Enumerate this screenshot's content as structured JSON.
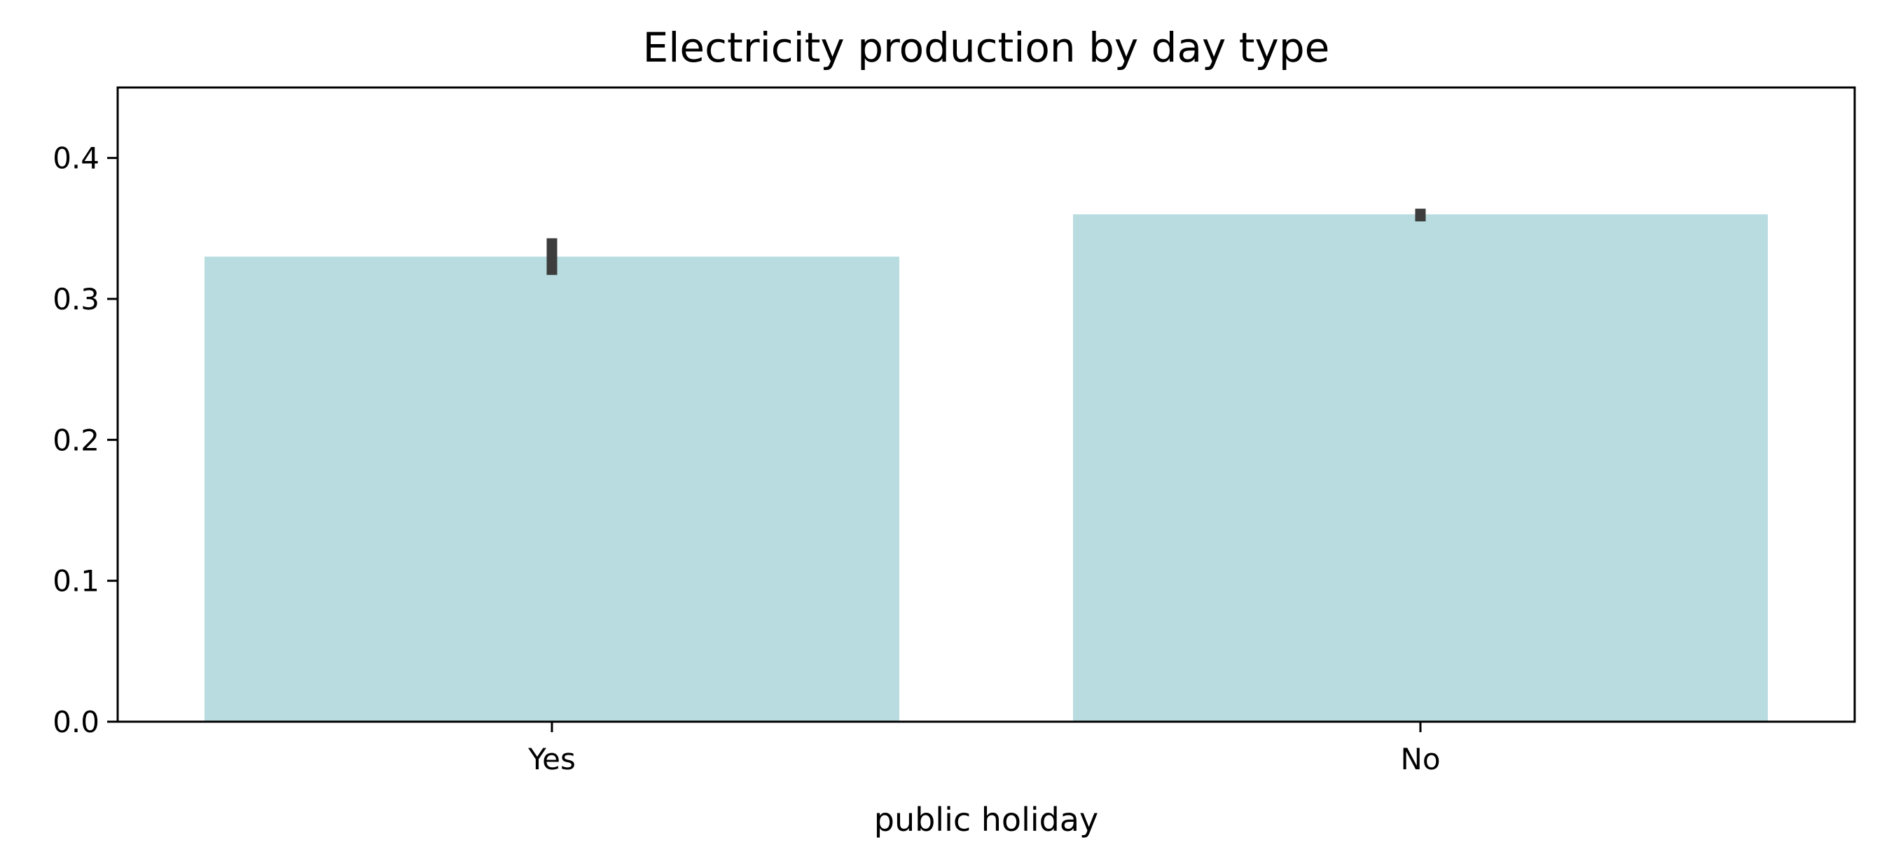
{
  "chart_data": {
    "type": "bar",
    "title": "Electricity production by day type",
    "xlabel": "public holiday",
    "ylabel": "",
    "categories": [
      "Yes",
      "No"
    ],
    "values": [
      0.33,
      0.36
    ],
    "error_bars": [
      [
        0.317,
        0.343
      ],
      [
        0.355,
        0.364
      ]
    ],
    "ylim": [
      0,
      0.45
    ],
    "yticks": [
      0.0,
      0.1,
      0.2,
      0.3,
      0.4
    ],
    "ytick_labels": [
      "0.0",
      "0.1",
      "0.2",
      "0.3",
      "0.4"
    ],
    "grid": false,
    "legend": "none",
    "colors": {
      "bar": "#b8dce0",
      "errorbar": "#3d3d3d",
      "axis": "#000000"
    }
  }
}
